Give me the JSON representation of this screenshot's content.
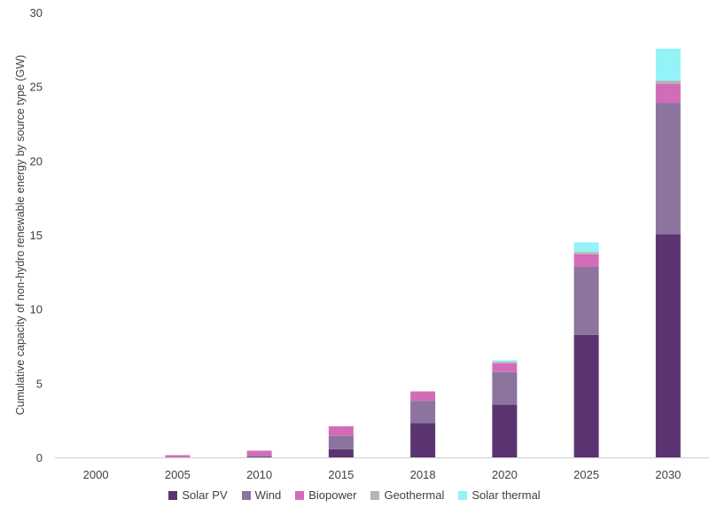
{
  "chart_data": {
    "type": "bar",
    "stacked": true,
    "categories": [
      "2000",
      "2005",
      "2010",
      "2015",
      "2018",
      "2020",
      "2025",
      "2030"
    ],
    "series": [
      {
        "name": "Solar PV",
        "color": "#5a3470",
        "values": [
          0,
          0,
          0.05,
          0.55,
          2.3,
          3.55,
          8.25,
          15.05
        ]
      },
      {
        "name": "Wind",
        "color": "#8b749e",
        "values": [
          0,
          0,
          0.05,
          0.9,
          1.5,
          2.2,
          4.6,
          8.85
        ]
      },
      {
        "name": "Biopower",
        "color": "#d36cb8",
        "values": [
          0,
          0.15,
          0.35,
          0.65,
          0.65,
          0.6,
          0.85,
          1.3
        ]
      },
      {
        "name": "Geothermal",
        "color": "#b5b5b5",
        "values": [
          0,
          0,
          0,
          0,
          0,
          0.1,
          0.15,
          0.2
        ]
      },
      {
        "name": "Solar thermal",
        "color": "#93f3f7",
        "values": [
          0,
          0,
          0,
          0,
          0,
          0.1,
          0.65,
          2.15
        ]
      }
    ],
    "title": "",
    "xlabel": "",
    "ylabel": "Cumulative capacity of non-hydro renewable energy by source type (GW)",
    "ylim": [
      0,
      30
    ],
    "yticks": [
      0,
      5,
      10,
      15,
      20,
      25,
      30
    ],
    "grid": false,
    "legend_position": "bottom"
  }
}
